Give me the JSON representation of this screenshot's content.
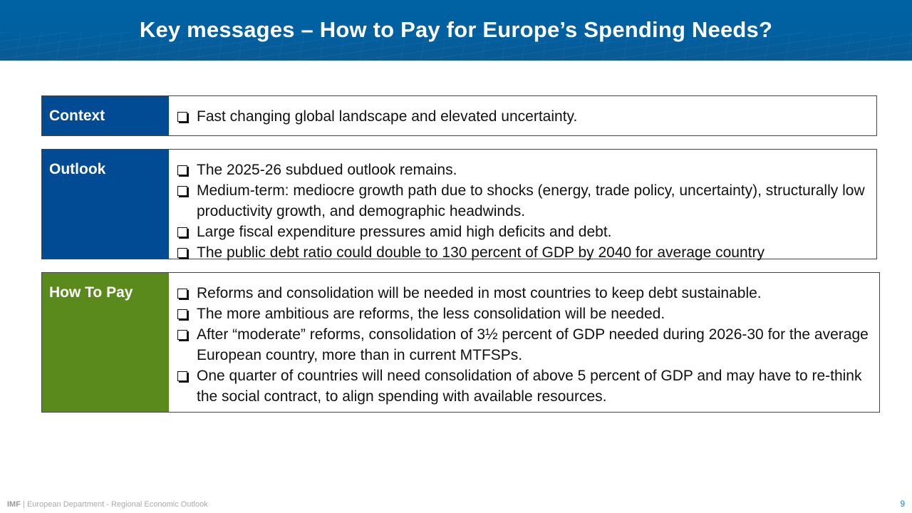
{
  "header": {
    "title": "Key messages – How to Pay for Europe’s Spending Needs?"
  },
  "sections": [
    {
      "label": "Context",
      "color": "#004b93",
      "items": [
        "Fast changing global landscape and elevated uncertainty."
      ]
    },
    {
      "label": "Outlook",
      "color": "#004b93",
      "items": [
        "The 2025-26 subdued outlook remains.",
        "Medium-term: mediocre growth path due to shocks (energy, trade policy, uncertainty), structurally low productivity growth, and demographic headwinds.",
        "Large fiscal expenditure pressures amid high deficits and debt.",
        "The public debt ratio could double to 130 percent of GDP by 2040 for average country"
      ]
    },
    {
      "label": "How To Pay",
      "color": "#5a8a1c",
      "items": [
        "Reforms and consolidation will be needed in most countries to keep debt sustainable.",
        "The more ambitious are reforms, the less consolidation will be needed.",
        "After “moderate” reforms, consolidation of 3½ percent of GDP needed during 2026-30 for the average European country, more than in current MTFSPs.",
        "One quarter of countries will need consolidation of above 5 percent of GDP and may have to re-think the social contract, to align spending with available resources."
      ]
    }
  ],
  "footer": {
    "org": "IMF",
    "separator": " | ",
    "text": "European Department - Regional Economic Outlook",
    "page": "9"
  }
}
